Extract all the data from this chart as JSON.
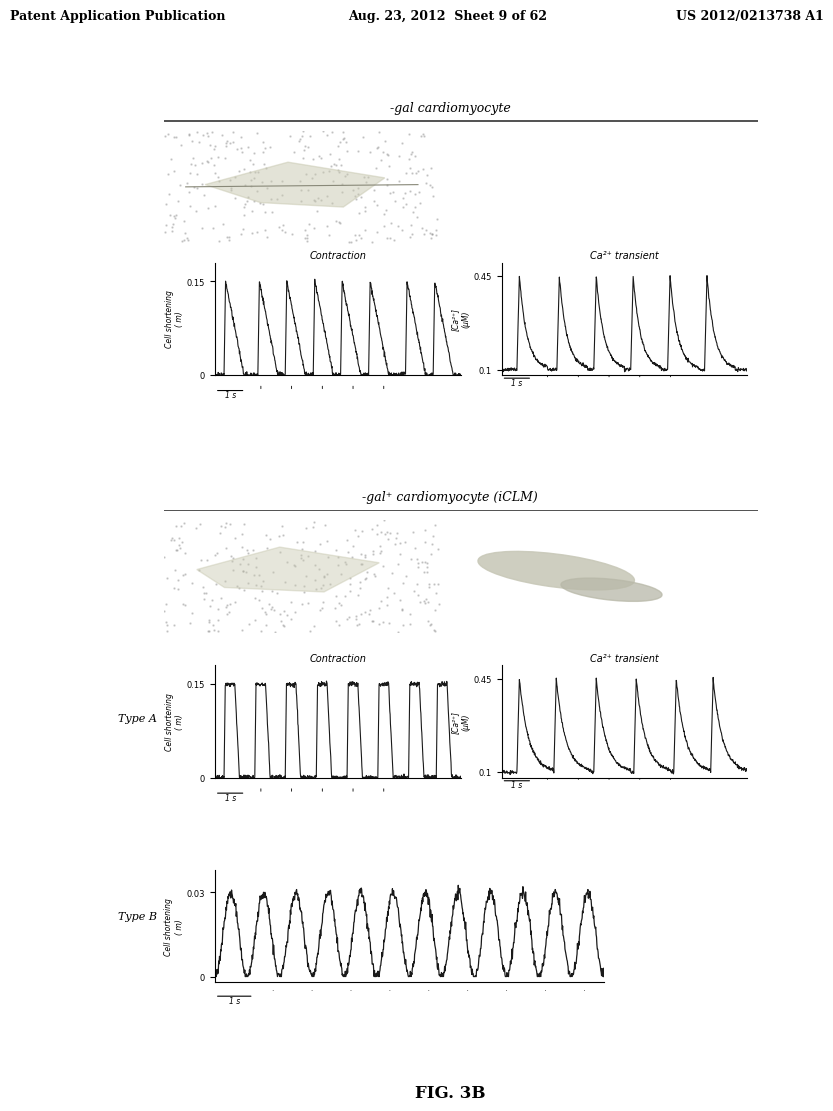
{
  "header_left": "Patent Application Publication",
  "header_mid": "Aug. 23, 2012  Sheet 9 of 62",
  "header_right": "US 2012/0213738 A1",
  "title1": "-gal cardiomyocyte",
  "title2": "-gal⁺ cardiomyocyte (iCLM)",
  "label_typeA": "Type A",
  "label_typeB": "Type B",
  "contraction_label": "Contraction",
  "ca_transient_label": "Ca²⁺ transient",
  "cell_shortening_ylabel": "Cell shortening\n( m)",
  "ca_ylabel": "[Ca²⁺]\n(μM)",
  "fig_label": "FIG. 3B",
  "bg_color": "#ffffff",
  "text_color": "#000000",
  "plot_line_color": "#1a1a1a",
  "axes_color": "#000000"
}
